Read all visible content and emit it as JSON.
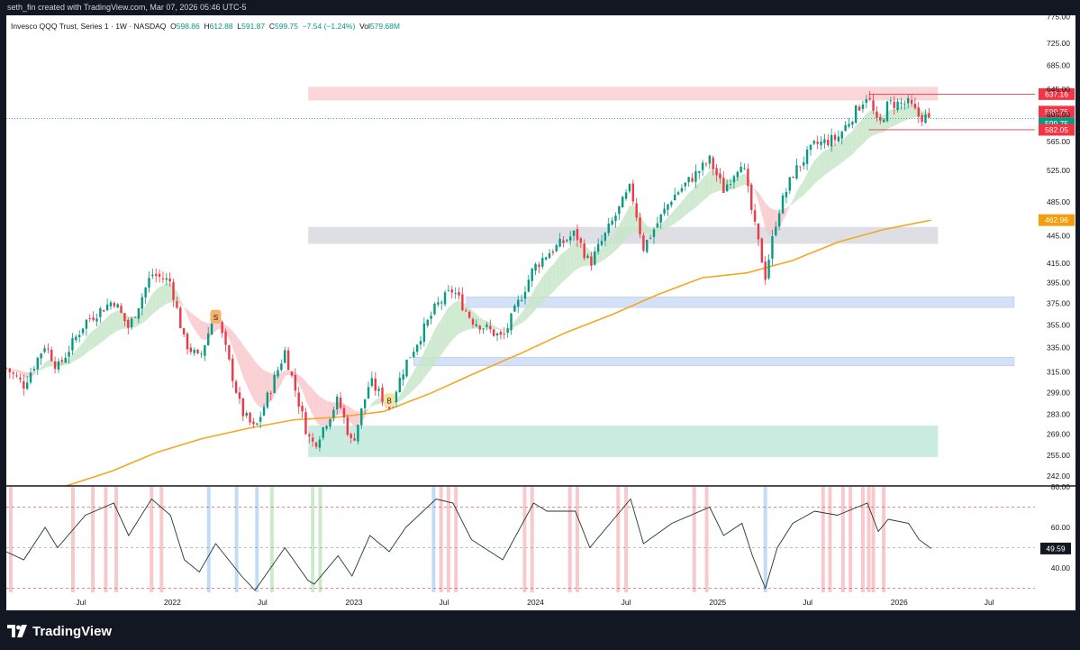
{
  "header": {
    "attribution": "seth_fin created with TradingView.com, Mar 07, 2026 05:46 UTC-5"
  },
  "legend": {
    "symbol": "Invesco QQQ Trust, Series 1 · 1W · NASDAQ",
    "open_label": "O",
    "open": "598.86",
    "high_label": "H",
    "high": "612.88",
    "low_label": "L",
    "low": "591.87",
    "close_label": "C",
    "close": "599.75",
    "change": "−7.54 (−1.24%)",
    "vol_label": "Vol",
    "vol": "579.68M"
  },
  "footer": {
    "brand": "TradingView"
  },
  "colors": {
    "up": "#089981",
    "down": "#f23645",
    "ma": "#f5a623",
    "ribbon_up": "#c8e6c9",
    "ribbon_down": "#f8c8cc",
    "zone_red": "#f8c8cc",
    "zone_gray": "#d1d4dc",
    "zone_blue": "#c7d7f5",
    "zone_green": "#b7e4d5",
    "osc_line": "#1e3a2a",
    "osc_red_bar": "#f7c3c7",
    "osc_blue_bar": "#bcd8f5",
    "osc_green_bar": "#c6e7c6"
  },
  "chart_data": [
    {
      "type": "candlestick",
      "title": "",
      "y_scale": "log",
      "ylim": [
        236,
        778
      ],
      "x_range": [
        "2021-02-01",
        "2026-10-01"
      ],
      "y_ticks": [
        775.0,
        725.0,
        685.0,
        645.0,
        605.0,
        565.0,
        525.0,
        485.0,
        445.0,
        415.0,
        395.0,
        375.0,
        355.0,
        335.0,
        315.0,
        299.0,
        283.0,
        269.0,
        255.0,
        242.0
      ],
      "x_ticks": [
        {
          "date": "2021-07-01",
          "label": "Jul"
        },
        {
          "date": "2022-01-01",
          "label": "2022"
        },
        {
          "date": "2022-07-01",
          "label": "Jul"
        },
        {
          "date": "2023-01-01",
          "label": "2023"
        },
        {
          "date": "2023-07-01",
          "label": "Jul"
        },
        {
          "date": "2024-01-01",
          "label": "2024"
        },
        {
          "date": "2024-07-01",
          "label": "Jul"
        },
        {
          "date": "2025-01-01",
          "label": "2025"
        },
        {
          "date": "2025-07-01",
          "label": "Jul"
        },
        {
          "date": "2026-01-01",
          "label": "2026"
        },
        {
          "date": "2026-07-01",
          "label": "Jul"
        }
      ],
      "price_path": [
        [
          "2021-02-01",
          318
        ],
        [
          "2021-03-08",
          305
        ],
        [
          "2021-04-20",
          338
        ],
        [
          "2021-05-15",
          318
        ],
        [
          "2021-07-10",
          358
        ],
        [
          "2021-09-05",
          378
        ],
        [
          "2021-10-05",
          352
        ],
        [
          "2021-11-20",
          404
        ],
        [
          "2021-12-28",
          396
        ],
        [
          "2022-01-25",
          340
        ],
        [
          "2022-02-24",
          325
        ],
        [
          "2022-03-29",
          368
        ],
        [
          "2022-05-20",
          285
        ],
        [
          "2022-06-16",
          272
        ],
        [
          "2022-08-15",
          332
        ],
        [
          "2022-09-30",
          268
        ],
        [
          "2022-10-13",
          262
        ],
        [
          "2022-11-30",
          294
        ],
        [
          "2022-12-28",
          262
        ],
        [
          "2023-02-02",
          308
        ],
        [
          "2023-03-13",
          288
        ],
        [
          "2023-04-15",
          322
        ],
        [
          "2023-06-15",
          372
        ],
        [
          "2023-07-19",
          388
        ],
        [
          "2023-08-25",
          360
        ],
        [
          "2023-10-27",
          343
        ],
        [
          "2023-12-28",
          410
        ],
        [
          "2024-01-24",
          425
        ],
        [
          "2024-03-21",
          448
        ],
        [
          "2024-04-19",
          414
        ],
        [
          "2024-07-10",
          503
        ],
        [
          "2024-08-05",
          432
        ],
        [
          "2024-10-01",
          490
        ],
        [
          "2024-12-16",
          539
        ],
        [
          "2025-01-13",
          500
        ],
        [
          "2025-02-19",
          540
        ],
        [
          "2025-03-12",
          468
        ],
        [
          "2025-04-07",
          402
        ],
        [
          "2025-05-01",
          470
        ],
        [
          "2025-06-01",
          520
        ],
        [
          "2025-07-15",
          560
        ],
        [
          "2025-08-30",
          570
        ],
        [
          "2025-10-29",
          637
        ],
        [
          "2025-11-20",
          585
        ],
        [
          "2025-12-10",
          622
        ],
        [
          "2026-01-20",
          622
        ],
        [
          "2026-02-10",
          602
        ],
        [
          "2026-03-06",
          599.75
        ]
      ],
      "moving_average": [
        [
          "2021-06-01",
          236
        ],
        [
          "2021-09-01",
          245
        ],
        [
          "2021-12-01",
          257
        ],
        [
          "2022-03-01",
          266
        ],
        [
          "2022-06-01",
          273
        ],
        [
          "2022-09-01",
          279
        ],
        [
          "2022-12-01",
          281
        ],
        [
          "2023-03-01",
          285
        ],
        [
          "2023-06-01",
          298
        ],
        [
          "2023-09-01",
          314
        ],
        [
          "2023-12-01",
          330
        ],
        [
          "2024-03-01",
          348
        ],
        [
          "2024-06-01",
          364
        ],
        [
          "2024-09-01",
          383
        ],
        [
          "2024-12-01",
          400
        ],
        [
          "2025-03-01",
          405
        ],
        [
          "2025-06-01",
          418
        ],
        [
          "2025-09-01",
          438
        ],
        [
          "2025-12-01",
          452
        ],
        [
          "2026-03-06",
          462.96
        ]
      ],
      "zones": [
        {
          "color": "red",
          "from": "2022-10-01",
          "to": "2026-03-20",
          "low": 627,
          "high": 649
        },
        {
          "color": "gray",
          "from": "2022-10-01",
          "to": "2026-03-20",
          "low": 436,
          "high": 455
        },
        {
          "color": "blue",
          "from": "2023-08-15",
          "to": "2026-08-20",
          "low": 371,
          "high": 381
        },
        {
          "color": "blue",
          "from": "2023-05-01",
          "to": "2026-08-20",
          "low": 320,
          "high": 327
        },
        {
          "color": "green",
          "from": "2022-10-01",
          "to": "2026-03-20",
          "low": 254,
          "high": 275
        }
      ],
      "signals": [
        {
          "date": "2022-03-29",
          "price": 362,
          "label": "S"
        },
        {
          "date": "2023-03-13",
          "price": 293,
          "label": "B"
        }
      ],
      "levels": [
        {
          "price": 637.16,
          "label": "637.16",
          "style": "red"
        },
        {
          "price": 599.75,
          "label": "599.75",
          "style": "red"
        },
        {
          "price": 599.75,
          "label": "599.75",
          "style": "green"
        },
        {
          "price": 582.05,
          "label": "582.05",
          "style": "red"
        },
        {
          "price": 462.96,
          "label": "462.96",
          "style": "orange"
        }
      ]
    },
    {
      "type": "line",
      "title": "",
      "ylim": [
        28,
        80
      ],
      "y_ticks": [
        80.0,
        60.0,
        40.0
      ],
      "overbought": 70,
      "oversold": 30,
      "mid": 50,
      "last_value": 49.59,
      "points": [
        [
          "2021-02-01",
          48
        ],
        [
          "2021-03-08",
          44
        ],
        [
          "2021-04-20",
          60
        ],
        [
          "2021-05-15",
          50
        ],
        [
          "2021-07-10",
          66
        ],
        [
          "2021-09-05",
          72
        ],
        [
          "2021-10-05",
          56
        ],
        [
          "2021-11-20",
          74
        ],
        [
          "2021-12-28",
          66
        ],
        [
          "2022-01-25",
          44
        ],
        [
          "2022-02-24",
          38
        ],
        [
          "2022-03-29",
          52
        ],
        [
          "2022-05-20",
          36
        ],
        [
          "2022-06-16",
          29
        ],
        [
          "2022-08-15",
          50
        ],
        [
          "2022-09-30",
          34
        ],
        [
          "2022-10-13",
          32
        ],
        [
          "2022-11-30",
          46
        ],
        [
          "2022-12-28",
          36
        ],
        [
          "2023-02-02",
          56
        ],
        [
          "2023-03-13",
          48
        ],
        [
          "2023-04-15",
          60
        ],
        [
          "2023-06-15",
          74
        ],
        [
          "2023-07-19",
          72
        ],
        [
          "2023-08-25",
          54
        ],
        [
          "2023-10-27",
          44
        ],
        [
          "2023-12-28",
          72
        ],
        [
          "2024-01-24",
          68
        ],
        [
          "2024-03-21",
          68
        ],
        [
          "2024-04-19",
          50
        ],
        [
          "2024-07-10",
          74
        ],
        [
          "2024-08-05",
          52
        ],
        [
          "2024-10-01",
          62
        ],
        [
          "2024-12-16",
          70
        ],
        [
          "2025-01-13",
          56
        ],
        [
          "2025-02-19",
          62
        ],
        [
          "2025-03-12",
          46
        ],
        [
          "2025-04-07",
          30
        ],
        [
          "2025-05-01",
          50
        ],
        [
          "2025-06-01",
          62
        ],
        [
          "2025-07-15",
          68
        ],
        [
          "2025-08-30",
          66
        ],
        [
          "2025-10-29",
          72
        ],
        [
          "2025-11-20",
          58
        ],
        [
          "2025-12-10",
          64
        ],
        [
          "2026-01-20",
          62
        ],
        [
          "2026-02-10",
          54
        ],
        [
          "2026-03-06",
          49.59
        ]
      ],
      "bands": [
        {
          "date": "2021-02-10",
          "color": "red"
        },
        {
          "date": "2021-06-15",
          "color": "red"
        },
        {
          "date": "2021-07-25",
          "color": "red"
        },
        {
          "date": "2021-08-20",
          "color": "red"
        },
        {
          "date": "2021-09-10",
          "color": "red"
        },
        {
          "date": "2021-11-20",
          "color": "red"
        },
        {
          "date": "2021-12-10",
          "color": "red"
        },
        {
          "date": "2022-03-15",
          "color": "blue"
        },
        {
          "date": "2022-05-10",
          "color": "blue"
        },
        {
          "date": "2022-06-20",
          "color": "blue"
        },
        {
          "date": "2022-07-20",
          "color": "green"
        },
        {
          "date": "2022-10-10",
          "color": "green"
        },
        {
          "date": "2022-10-25",
          "color": "green"
        },
        {
          "date": "2023-06-10",
          "color": "blue"
        },
        {
          "date": "2023-06-25",
          "color": "red"
        },
        {
          "date": "2023-07-10",
          "color": "red"
        },
        {
          "date": "2023-07-25",
          "color": "red"
        },
        {
          "date": "2023-12-10",
          "color": "red"
        },
        {
          "date": "2023-12-25",
          "color": "red"
        },
        {
          "date": "2024-03-10",
          "color": "red"
        },
        {
          "date": "2024-03-25",
          "color": "red"
        },
        {
          "date": "2024-06-15",
          "color": "red"
        },
        {
          "date": "2024-07-01",
          "color": "red"
        },
        {
          "date": "2024-11-15",
          "color": "red"
        },
        {
          "date": "2024-12-10",
          "color": "red"
        },
        {
          "date": "2025-04-07",
          "color": "blue"
        },
        {
          "date": "2025-08-01",
          "color": "red"
        },
        {
          "date": "2025-08-15",
          "color": "red"
        },
        {
          "date": "2025-09-10",
          "color": "red"
        },
        {
          "date": "2025-09-25",
          "color": "red"
        },
        {
          "date": "2025-10-20",
          "color": "red"
        },
        {
          "date": "2025-11-01",
          "color": "red"
        },
        {
          "date": "2025-11-10",
          "color": "red"
        },
        {
          "date": "2025-12-01",
          "color": "red"
        }
      ]
    }
  ]
}
